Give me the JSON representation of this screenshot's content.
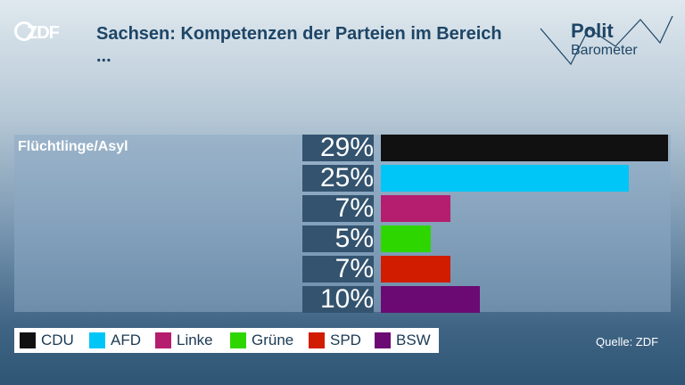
{
  "header": {
    "logo": "ZDF",
    "title": "Sachsen: Kompetenzen der Parteien im Bereich ...",
    "brand_line1": "Polit",
    "brand_line2": "Barometer"
  },
  "chart_data": {
    "type": "bar",
    "category": "Flüchtlinge/Asyl",
    "categories": [
      "CDU",
      "AFD",
      "Linke",
      "Grüne",
      "SPD",
      "BSW"
    ],
    "values": [
      29,
      25,
      7,
      5,
      7,
      10
    ],
    "labels": [
      "29%",
      "25%",
      "7%",
      "5%",
      "7%",
      "10%"
    ],
    "colors": [
      "#111111",
      "#00c6f8",
      "#b51e6e",
      "#2ed600",
      "#d11c00",
      "#6b0a72"
    ],
    "xlim": [
      0,
      29
    ]
  },
  "legend": [
    {
      "label": "CDU",
      "color": "#111111"
    },
    {
      "label": "AFD",
      "color": "#00c6f8"
    },
    {
      "label": "Linke",
      "color": "#b51e6e"
    },
    {
      "label": "Grüne",
      "color": "#2ed600"
    },
    {
      "label": "SPD",
      "color": "#d11c00"
    },
    {
      "label": "BSW",
      "color": "#6b0a72"
    }
  ],
  "source": "Quelle: ZDF"
}
